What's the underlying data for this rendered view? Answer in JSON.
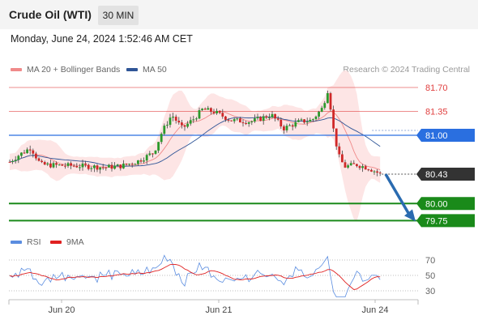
{
  "header": {
    "title": "Crude Oil (WTI)",
    "timeframe": "30 MIN"
  },
  "datetime": "Monday, June 24, 2024 1:52:46 AM CET",
  "legend": {
    "ma20": "MA 20 + Bollinger Bands",
    "ma50": "MA 50",
    "credit": "Research © 2024 Trading Central",
    "ma20_color": "#f08a8a",
    "ma50_color": "#2f5597"
  },
  "levels": {
    "r2": "81.70",
    "r1": "81.35",
    "pivot": "81.00",
    "last": "80.43",
    "s1": "80.00",
    "s2": "79.75",
    "colors": {
      "resistance": "#e04040",
      "pivot": "#2a6fe0",
      "last": "#333333",
      "support": "#1a8a1a",
      "arrow": "#2a6bb0"
    }
  },
  "rsi_legend": {
    "rsi": "RSI",
    "ma": "9MA",
    "rsi_color": "#5b8de0",
    "ma_color": "#e02020"
  },
  "rsi_ticks": [
    "70",
    "50",
    "30"
  ],
  "x_ticks": [
    "Jun 20",
    "Jun 21",
    "Jun 24"
  ],
  "chart_data": {
    "type": "candlestick",
    "price_scale": {
      "levels": [
        81.7,
        81.35,
        81.0,
        80.43,
        80.0,
        79.75
      ]
    },
    "projection": {
      "from": 80.43,
      "to": 79.75
    },
    "rsi_levels": [
      70,
      50,
      30
    ]
  }
}
